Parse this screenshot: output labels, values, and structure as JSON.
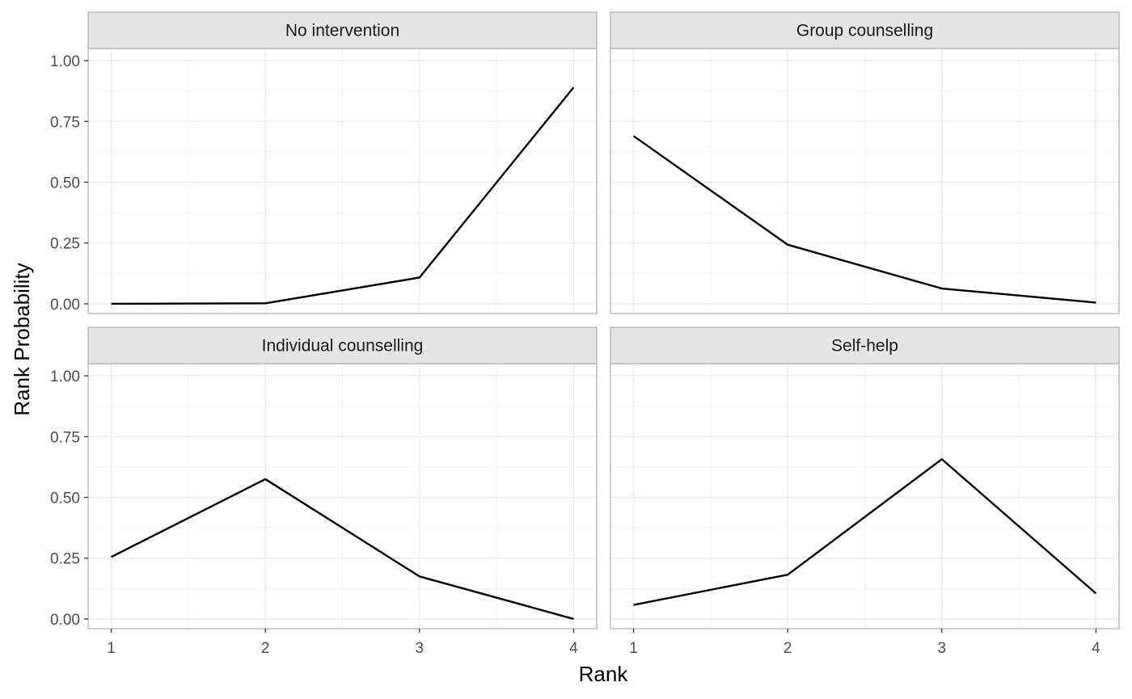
{
  "chart_data": {
    "type": "line",
    "xlabel": "Rank",
    "ylabel": "Rank Probability",
    "x": [
      1,
      2,
      3,
      4
    ],
    "x_tick_labels": [
      "1",
      "2",
      "3",
      "4"
    ],
    "y_tick_labels": [
      "0.00",
      "0.25",
      "0.50",
      "0.75",
      "1.00"
    ],
    "y_ticks": [
      0,
      0.25,
      0.5,
      0.75,
      1.0
    ],
    "xlim": [
      0.85,
      4.15
    ],
    "ylim": [
      -0.04,
      1.05
    ],
    "grid": true,
    "line_color": "#000000",
    "panels": [
      {
        "title": "No intervention",
        "values": [
          0.0,
          0.002,
          0.108,
          0.89
        ]
      },
      {
        "title": "Group counselling",
        "values": [
          0.69,
          0.243,
          0.063,
          0.005
        ]
      },
      {
        "title": "Individual counselling",
        "values": [
          0.255,
          0.575,
          0.175,
          0.0
        ]
      },
      {
        "title": "Self-help",
        "values": [
          0.058,
          0.182,
          0.657,
          0.105
        ]
      }
    ]
  }
}
